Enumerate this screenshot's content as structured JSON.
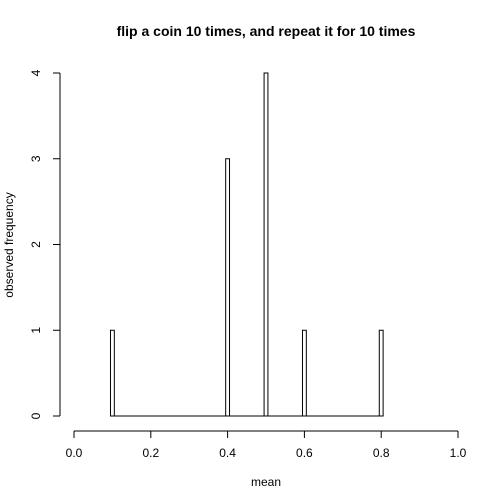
{
  "chart_data": {
    "type": "bar",
    "title": "flip a coin 10 times, and repeat it for 10 times",
    "xlabel": "mean",
    "ylabel": "observed frequency",
    "xlim": [
      0,
      1
    ],
    "ylim": [
      0,
      4
    ],
    "x_ticks": [
      "0.0",
      "0.2",
      "0.4",
      "0.6",
      "0.8",
      "1.0"
    ],
    "y_ticks": [
      "0",
      "1",
      "2",
      "3",
      "4"
    ],
    "grid": false,
    "bin_width": 0.01,
    "baseline_range": [
      0.1,
      0.8
    ],
    "series": [
      {
        "x": [
          0.1,
          0.4,
          0.5,
          0.6,
          0.8
        ],
        "values": [
          1,
          3,
          4,
          1,
          1
        ]
      }
    ]
  }
}
